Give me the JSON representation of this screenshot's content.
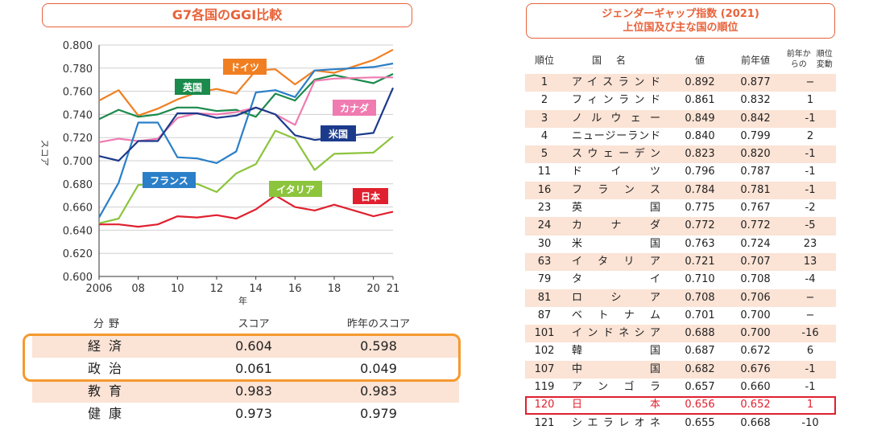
{
  "left_panel": {
    "title": "G7各国のGGI比較"
  },
  "chart_data": {
    "type": "line",
    "ylabel": "スコア",
    "xlabel": "年",
    "ylim": [
      0.6,
      0.8
    ],
    "yticks": [
      "0.800",
      "0.780",
      "0.760",
      "0.740",
      "0.720",
      "0.700",
      "0.680",
      "0.660",
      "0.640",
      "0.620",
      "0.600"
    ],
    "x": [
      2006,
      2007,
      2008,
      2009,
      2010,
      2011,
      2012,
      2013,
      2014,
      2015,
      2016,
      2017,
      2018,
      2020,
      2021
    ],
    "xtick_labels": [
      {
        "x": 2006,
        "label": "2006"
      },
      {
        "x": 2008,
        "label": "08"
      },
      {
        "x": 2010,
        "label": "10"
      },
      {
        "x": 2012,
        "label": "12"
      },
      {
        "x": 2014,
        "label": "14"
      },
      {
        "x": 2016,
        "label": "16"
      },
      {
        "x": 2018,
        "label": "18"
      },
      {
        "x": 2020,
        "label": "20"
      },
      {
        "x": 2021,
        "label": "21"
      }
    ],
    "series": [
      {
        "name": "ドイツ",
        "color": "#f07f22",
        "values": [
          0.752,
          0.761,
          0.739,
          0.745,
          0.753,
          0.759,
          0.762,
          0.758,
          0.778,
          0.779,
          0.766,
          0.778,
          0.776,
          0.787,
          0.796
        ]
      },
      {
        "name": "英国",
        "color": "#1b8a4c",
        "values": [
          0.736,
          0.744,
          0.738,
          0.74,
          0.746,
          0.746,
          0.743,
          0.744,
          0.738,
          0.758,
          0.752,
          0.77,
          0.774,
          0.767,
          0.775
        ]
      },
      {
        "name": "カナダ",
        "color": "#f07bb0",
        "values": [
          0.716,
          0.719,
          0.717,
          0.719,
          0.737,
          0.741,
          0.74,
          0.742,
          0.746,
          0.74,
          0.731,
          0.769,
          0.771,
          0.772,
          0.772
        ]
      },
      {
        "name": "フランス",
        "color": "#2b7fc8",
        "values": [
          0.651,
          0.681,
          0.733,
          0.733,
          0.703,
          0.702,
          0.698,
          0.708,
          0.759,
          0.761,
          0.755,
          0.778,
          0.779,
          0.781,
          0.784
        ]
      },
      {
        "name": "米国",
        "color": "#1c3a8c",
        "values": [
          0.704,
          0.7,
          0.717,
          0.717,
          0.741,
          0.741,
          0.737,
          0.739,
          0.746,
          0.74,
          0.722,
          0.718,
          0.72,
          0.724,
          0.763
        ]
      },
      {
        "name": "イタリア",
        "color": "#8cc43c",
        "values": [
          0.646,
          0.65,
          0.679,
          0.68,
          0.677,
          0.68,
          0.673,
          0.689,
          0.697,
          0.726,
          0.719,
          0.692,
          0.706,
          0.707,
          0.721
        ]
      },
      {
        "name": "日本",
        "color": "#e0202f",
        "values": [
          0.645,
          0.645,
          0.643,
          0.645,
          0.652,
          0.651,
          0.653,
          0.65,
          0.658,
          0.67,
          0.66,
          0.657,
          0.662,
          0.652,
          0.656
        ]
      }
    ]
  },
  "score_table": {
    "headers": [
      "分野",
      "スコア",
      "昨年のスコア"
    ],
    "rows": [
      {
        "field": "経済",
        "score": "0.604",
        "prev": "0.598"
      },
      {
        "field": "政治",
        "score": "0.061",
        "prev": "0.049"
      },
      {
        "field": "教育",
        "score": "0.983",
        "prev": "0.983"
      },
      {
        "field": "健康",
        "score": "0.973",
        "prev": "0.979"
      }
    ]
  },
  "right_panel": {
    "title_line1": "ジェンダーギャップ指数 (2021)",
    "title_line2": "上位国及び主な国の順位",
    "headers": {
      "rank": "順位",
      "country": "国名",
      "value": "値",
      "prev": "前年値",
      "change_line1": "前年からの",
      "change_line2": "順位変動"
    },
    "rows": [
      {
        "rank": "1",
        "country": "アイスランド",
        "value": "0.892",
        "prev": "0.877",
        "change": "−"
      },
      {
        "rank": "2",
        "country": "フィンランド",
        "value": "0.861",
        "prev": "0.832",
        "change": "1"
      },
      {
        "rank": "3",
        "country": "ノルウェー",
        "value": "0.849",
        "prev": "0.842",
        "change": "-1"
      },
      {
        "rank": "4",
        "country": "ニュージーランド",
        "value": "0.840",
        "prev": "0.799",
        "change": "2"
      },
      {
        "rank": "5",
        "country": "スウェーデン",
        "value": "0.823",
        "prev": "0.820",
        "change": "-1"
      },
      {
        "rank": "11",
        "country": "ドイツ",
        "value": "0.796",
        "prev": "0.787",
        "change": "-1"
      },
      {
        "rank": "16",
        "country": "フランス",
        "value": "0.784",
        "prev": "0.781",
        "change": "-1"
      },
      {
        "rank": "23",
        "country": "英国",
        "value": "0.775",
        "prev": "0.767",
        "change": "-2"
      },
      {
        "rank": "24",
        "country": "カナダ",
        "value": "0.772",
        "prev": "0.772",
        "change": "-5"
      },
      {
        "rank": "30",
        "country": "米国",
        "value": "0.763",
        "prev": "0.724",
        "change": "23"
      },
      {
        "rank": "63",
        "country": "イタリア",
        "value": "0.721",
        "prev": "0.707",
        "change": "13"
      },
      {
        "rank": "79",
        "country": "タイ",
        "value": "0.710",
        "prev": "0.708",
        "change": "-4"
      },
      {
        "rank": "81",
        "country": "ロシア",
        "value": "0.708",
        "prev": "0.706",
        "change": "−"
      },
      {
        "rank": "87",
        "country": "ベトナム",
        "value": "0.701",
        "prev": "0.700",
        "change": "−"
      },
      {
        "rank": "101",
        "country": "インドネシア",
        "value": "0.688",
        "prev": "0.700",
        "change": "-16"
      },
      {
        "rank": "102",
        "country": "韓国",
        "value": "0.687",
        "prev": "0.672",
        "change": "6"
      },
      {
        "rank": "107",
        "country": "中国",
        "value": "0.682",
        "prev": "0.676",
        "change": "-1"
      },
      {
        "rank": "119",
        "country": "アンゴラ",
        "value": "0.657",
        "prev": "0.660",
        "change": "-1"
      },
      {
        "rank": "120",
        "country": "日本",
        "value": "0.656",
        "prev": "0.652",
        "change": "1"
      },
      {
        "rank": "121",
        "country": "シエラレオネ",
        "value": "0.655",
        "prev": "0.668",
        "change": "-10"
      }
    ]
  }
}
